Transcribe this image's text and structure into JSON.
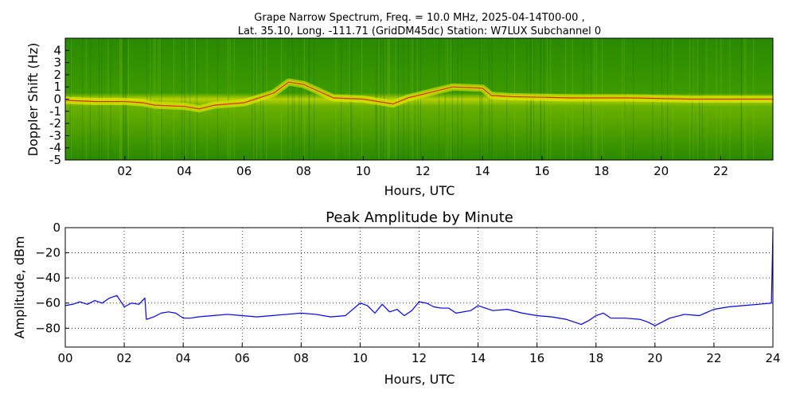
{
  "chart_data": [
    {
      "type": "heatmap",
      "title_line1": "Grape Narrow Spectrum, Freq. = 10.0 MHz, 2025-04-14T00-00 ,",
      "title_line2": "Lat.  35.10, Long. -111.71 (GridDM45dc) Station: W7LUX Subchannel 0",
      "xlabel": "Hours, UTC",
      "ylabel": "Doppler Shift (Hz)",
      "x_ticks": [
        "02",
        "04",
        "06",
        "08",
        "10",
        "12",
        "14",
        "16",
        "18",
        "20",
        "22"
      ],
      "x_tick_values": [
        2,
        4,
        6,
        8,
        10,
        12,
        14,
        16,
        18,
        20,
        22
      ],
      "y_ticks": [
        "4",
        "3",
        "2",
        "1",
        "0",
        "-1",
        "-2",
        "-3",
        "-4",
        "-5"
      ],
      "y_tick_values": [
        4,
        3,
        2,
        1,
        0,
        -1,
        -2,
        -3,
        -4,
        -5
      ],
      "xlim": [
        0,
        23.75
      ],
      "ylim": [
        -5,
        5
      ],
      "colors": {
        "background": "#1a7a00",
        "mid": "#c8d800",
        "high": "#f5f000",
        "peak": "#e00000"
      },
      "doppler_trace": {
        "x": [
          0,
          1,
          2,
          2.6,
          3,
          4,
          4.5,
          5,
          6,
          7,
          7.5,
          8,
          9,
          10,
          11,
          11.5,
          12,
          12.5,
          13,
          14,
          14.3,
          15,
          16,
          17,
          18,
          19,
          20,
          21,
          22,
          23,
          23.75
        ],
        "y": [
          -0.1,
          -0.2,
          -0.2,
          -0.3,
          -0.5,
          -0.6,
          -0.8,
          -0.5,
          -0.3,
          0.5,
          1.4,
          1.2,
          0.1,
          0,
          -0.4,
          0.1,
          0.4,
          0.7,
          1.0,
          0.9,
          0.3,
          0.2,
          0.15,
          0.1,
          0.1,
          0.1,
          0.05,
          0,
          0,
          0,
          0
        ]
      }
    },
    {
      "type": "line",
      "title": "Peak Amplitude by Minute",
      "xlabel": "Hours, UTC",
      "ylabel": "Amplitude, dBm",
      "xlim": [
        0,
        24
      ],
      "ylim": [
        -95,
        0
      ],
      "grid": true,
      "x_ticks": [
        "00",
        "02",
        "04",
        "06",
        "08",
        "10",
        "12",
        "14",
        "16",
        "18",
        "20",
        "22",
        "24"
      ],
      "x_tick_values": [
        0,
        2,
        4,
        6,
        8,
        10,
        12,
        14,
        16,
        18,
        20,
        22,
        24
      ],
      "y_ticks": [
        "0",
        "−20",
        "−40",
        "−60",
        "−80"
      ],
      "y_tick_values": [
        0,
        -20,
        -40,
        -60,
        -80
      ],
      "line_color": "#0000ff",
      "series": [
        {
          "x": [
            0,
            0.25,
            0.5,
            0.75,
            1,
            1.25,
            1.5,
            1.75,
            2,
            2.25,
            2.5,
            2.7,
            2.75,
            3,
            3.25,
            3.5,
            3.75,
            4,
            4.25,
            4.5,
            5,
            5.5,
            6,
            6.5,
            7,
            7.5,
            8,
            8.5,
            9,
            9.5,
            10,
            10.25,
            10.5,
            10.75,
            11,
            11.25,
            11.5,
            11.75,
            12,
            12.25,
            12.5,
            12.75,
            13,
            13.25,
            13.5,
            13.75,
            14,
            14.5,
            15,
            15.5,
            16,
            16.5,
            17,
            17.25,
            17.5,
            17.75,
            18,
            18.25,
            18.5,
            19,
            19.5,
            19.75,
            20,
            20.5,
            21,
            21.5,
            22,
            22.5,
            23,
            23.5,
            23.95,
            24
          ],
          "y": [
            -62,
            -61,
            -59,
            -61,
            -58,
            -60,
            -56,
            -54,
            -63,
            -60,
            -61,
            -56,
            -73,
            -71,
            -68,
            -67,
            -68,
            -72,
            -72,
            -71,
            -70,
            -69,
            -70,
            -71,
            -70,
            -69,
            -68,
            -69,
            -71,
            -70,
            -60,
            -62,
            -68,
            -61,
            -67,
            -65,
            -70,
            -66,
            -59,
            -60,
            -63,
            -64,
            -64,
            -68,
            -67,
            -66,
            -62,
            -66,
            -65,
            -68,
            -70,
            -71,
            -73,
            -75,
            -77,
            -74,
            -70,
            -68,
            -72,
            -72,
            -73,
            -75,
            -78,
            -72,
            -69,
            -70,
            -65,
            -63,
            -62,
            -61,
            -60,
            -3
          ]
        }
      ]
    }
  ]
}
